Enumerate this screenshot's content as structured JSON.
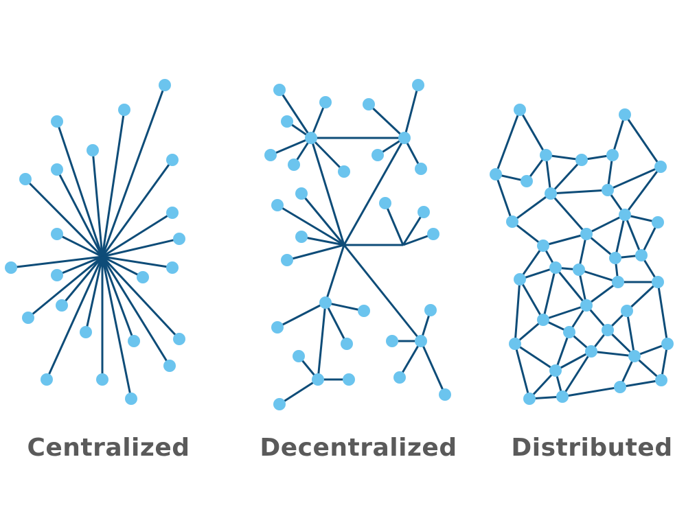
{
  "colors": {
    "edge": "#0e4c78",
    "node": "#6bc4ee",
    "label": "#5a5a5a"
  },
  "diagrams": [
    {
      "label": "Centralized"
    },
    {
      "label": "Decentralized"
    },
    {
      "label": "Distributed"
    }
  ]
}
